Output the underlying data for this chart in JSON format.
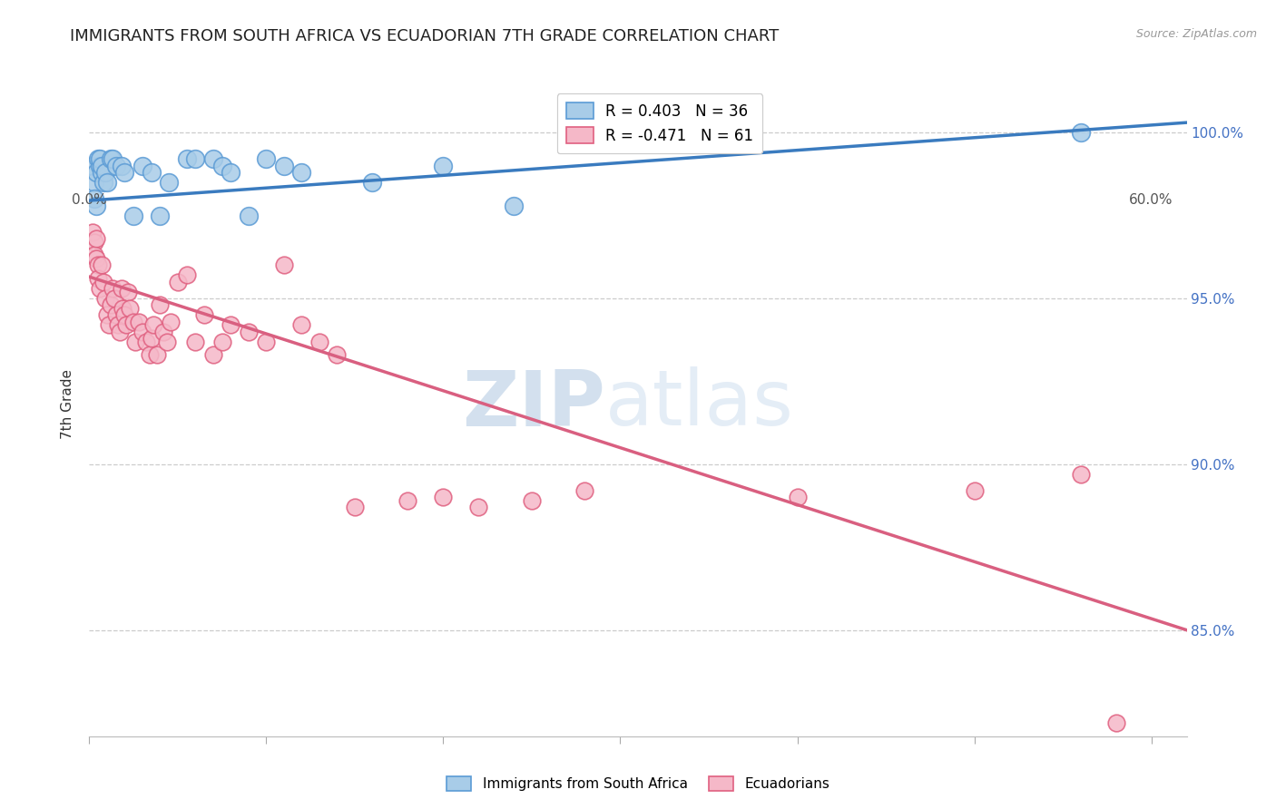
{
  "title": "IMMIGRANTS FROM SOUTH AFRICA VS ECUADORIAN 7TH GRADE CORRELATION CHART",
  "source": "Source: ZipAtlas.com",
  "ylabel": "7th Grade",
  "ytick_labels": [
    "100.0%",
    "95.0%",
    "90.0%",
    "85.0%"
  ],
  "ytick_values": [
    1.0,
    0.95,
    0.9,
    0.85
  ],
  "xlim": [
    0.0,
    0.62
  ],
  "ylim": [
    0.818,
    1.018
  ],
  "legend_blue": "R = 0.403   N = 36",
  "legend_pink": "R = -0.471   N = 61",
  "legend_label_blue": "Immigrants from South Africa",
  "legend_label_pink": "Ecuadorians",
  "watermark_zip": "ZIP",
  "watermark_atlas": "atlas",
  "blue_scatter_x": [
    0.002,
    0.003,
    0.004,
    0.005,
    0.006,
    0.007,
    0.008,
    0.003,
    0.004,
    0.006,
    0.007,
    0.009,
    0.01,
    0.012,
    0.013,
    0.015,
    0.018,
    0.02,
    0.025,
    0.03,
    0.035,
    0.04,
    0.045,
    0.055,
    0.06,
    0.07,
    0.075,
    0.08,
    0.09,
    0.1,
    0.11,
    0.12,
    0.16,
    0.2,
    0.24,
    0.56
  ],
  "blue_scatter_y": [
    0.99,
    0.985,
    0.988,
    0.992,
    0.99,
    0.988,
    0.985,
    0.98,
    0.978,
    0.992,
    0.99,
    0.988,
    0.985,
    0.992,
    0.992,
    0.99,
    0.99,
    0.988,
    0.975,
    0.99,
    0.988,
    0.975,
    0.985,
    0.992,
    0.992,
    0.992,
    0.99,
    0.988,
    0.975,
    0.992,
    0.99,
    0.988,
    0.985,
    0.99,
    0.978,
    1.0
  ],
  "pink_scatter_x": [
    0.002,
    0.003,
    0.003,
    0.004,
    0.004,
    0.005,
    0.005,
    0.006,
    0.007,
    0.008,
    0.009,
    0.01,
    0.011,
    0.012,
    0.013,
    0.014,
    0.015,
    0.016,
    0.017,
    0.018,
    0.019,
    0.02,
    0.021,
    0.022,
    0.023,
    0.025,
    0.026,
    0.028,
    0.03,
    0.032,
    0.034,
    0.035,
    0.036,
    0.038,
    0.04,
    0.042,
    0.044,
    0.046,
    0.05,
    0.055,
    0.06,
    0.065,
    0.07,
    0.075,
    0.08,
    0.09,
    0.1,
    0.11,
    0.12,
    0.13,
    0.14,
    0.15,
    0.18,
    0.2,
    0.22,
    0.25,
    0.28,
    0.4,
    0.5,
    0.56,
    0.58
  ],
  "pink_scatter_y": [
    0.97,
    0.967,
    0.963,
    0.968,
    0.962,
    0.96,
    0.956,
    0.953,
    0.96,
    0.955,
    0.95,
    0.945,
    0.942,
    0.948,
    0.953,
    0.95,
    0.945,
    0.942,
    0.94,
    0.953,
    0.947,
    0.945,
    0.942,
    0.952,
    0.947,
    0.943,
    0.937,
    0.943,
    0.94,
    0.937,
    0.933,
    0.938,
    0.942,
    0.933,
    0.948,
    0.94,
    0.937,
    0.943,
    0.955,
    0.957,
    0.937,
    0.945,
    0.933,
    0.937,
    0.942,
    0.94,
    0.937,
    0.96,
    0.942,
    0.937,
    0.933,
    0.887,
    0.889,
    0.89,
    0.887,
    0.889,
    0.892,
    0.89,
    0.892,
    0.897,
    0.822
  ],
  "blue_line_x": [
    0.0,
    0.62
  ],
  "blue_line_y": [
    0.9795,
    1.003
  ],
  "pink_line_x": [
    0.0,
    0.62
  ],
  "pink_line_y": [
    0.9565,
    0.85
  ],
  "blue_color": "#a8cce8",
  "pink_color": "#f5b8c8",
  "blue_edge_color": "#5b9bd5",
  "pink_edge_color": "#e06080",
  "blue_line_color": "#3a7bbf",
  "pink_line_color": "#d95f80",
  "title_fontsize": 13,
  "axis_label_fontsize": 11,
  "tick_fontsize": 11,
  "right_tick_color": "#4472c4"
}
